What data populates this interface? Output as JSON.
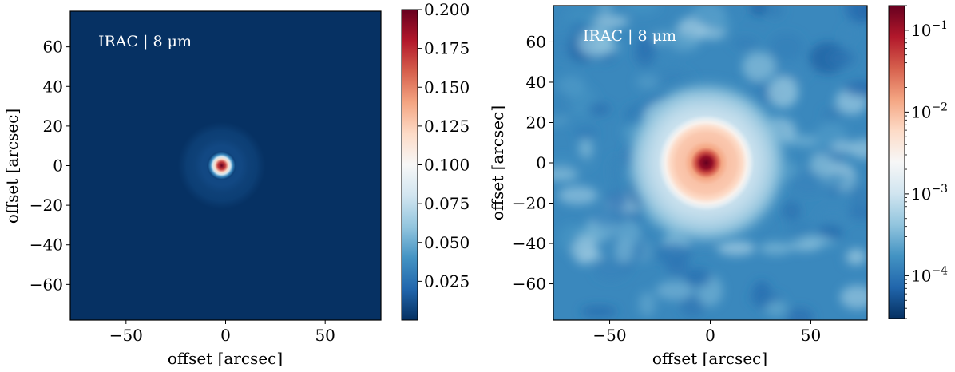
{
  "colors": {
    "cmap": [
      "#053061",
      "#2166ac",
      "#4393c3",
      "#92c5de",
      "#d1e5f0",
      "#f7f7f7",
      "#fddbc7",
      "#f4a582",
      "#d6604d",
      "#b2182b",
      "#67001f"
    ],
    "annotation_text": "#ffffff"
  },
  "chart_data": [
    {
      "type": "heatmap",
      "title": "",
      "annotation": "IRAC | 8 μm",
      "xlabel": "offset [arcsec]",
      "ylabel": "offset [arcsec]",
      "xlim": [
        -78,
        78
      ],
      "ylim": [
        -78,
        78
      ],
      "xticks": [
        -50,
        0,
        50
      ],
      "xtick_labels": [
        "−50",
        "0",
        "50"
      ],
      "yticks": [
        -60,
        -40,
        -20,
        0,
        20,
        40,
        60
      ],
      "ytick_labels": [
        "−60",
        "−40",
        "−20",
        "0",
        "20",
        "40",
        "60"
      ],
      "colormap": "RdBu_r",
      "colorbar": {
        "scale": "linear",
        "range": [
          0.0,
          0.2
        ],
        "ticks": [
          0.025,
          0.05,
          0.075,
          0.1,
          0.125,
          0.15,
          0.175,
          0.2
        ],
        "tick_labels": [
          "0.025",
          "0.050",
          "0.075",
          "0.100",
          "0.125",
          "0.150",
          "0.175",
          "0.200"
        ]
      },
      "psf": {
        "center": [
          -2,
          0
        ],
        "peak": 0.2,
        "core_fwhm_arcsec": 4,
        "ring_radius_arcsec": 13
      }
    },
    {
      "type": "heatmap",
      "title": "",
      "annotation": "IRAC | 8 μm",
      "xlabel": "offset [arcsec]",
      "ylabel": "offset [arcsec]",
      "xlim": [
        -78,
        78
      ],
      "ylim": [
        -78,
        78
      ],
      "xticks": [
        -50,
        0,
        50
      ],
      "xtick_labels": [
        "−50",
        "0",
        "50"
      ],
      "yticks": [
        -60,
        -40,
        -20,
        0,
        20,
        40,
        60
      ],
      "ytick_labels": [
        "−60",
        "−40",
        "−20",
        "0",
        "20",
        "40",
        "60"
      ],
      "colormap": "RdBu_r",
      "colorbar": {
        "scale": "log",
        "range": [
          3e-05,
          0.2
        ],
        "ticks": [
          0.0001,
          0.001,
          0.01,
          0.1
        ],
        "tick_labels": [
          "10",
          "10",
          "10",
          "10"
        ],
        "tick_exponents": [
          "−4",
          "−3",
          "−2",
          "−1"
        ]
      },
      "psf": {
        "center": [
          -2,
          0
        ],
        "peak": 0.2,
        "core_fwhm_arcsec": 4,
        "ring_radius_arcsec": 13
      }
    }
  ]
}
